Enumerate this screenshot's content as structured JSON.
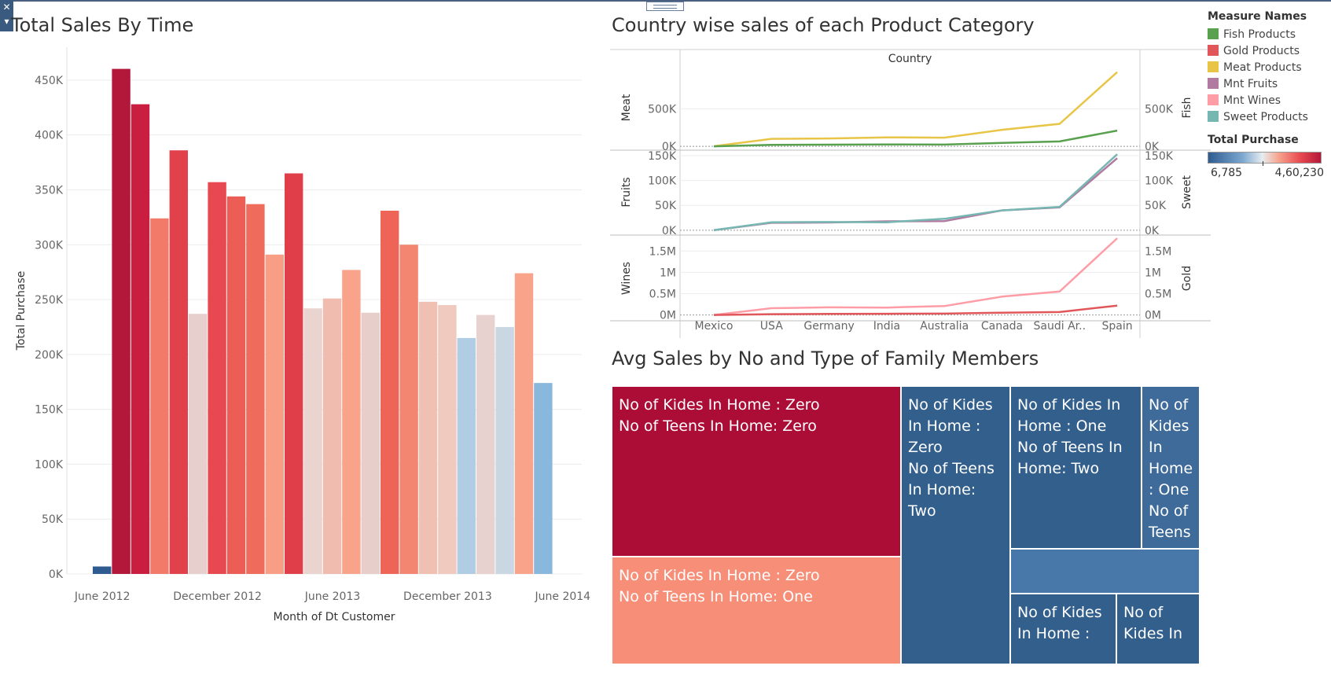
{
  "colors": {
    "title": "#333333",
    "axis_text": "#666666",
    "scale_low": "#2e5c91",
    "scale_mid": "#e6ecf0",
    "scale_high": "#b3183a"
  },
  "toolbar": {
    "corner_icon": "close-icon",
    "handle_icon": "drag-handle-icon"
  },
  "sales_by_time": {
    "title": "Total Sales By Time",
    "chart_data": {
      "type": "bar",
      "title": "Total Sales By Time",
      "xlabel": "Month of Dt Customer",
      "ylabel": "Total Purchase",
      "ylim": [
        0,
        480000
      ],
      "yticks": [
        "0K",
        "50K",
        "100K",
        "150K",
        "200K",
        "250K",
        "300K",
        "350K",
        "400K",
        "450K"
      ],
      "ytick_values": [
        0,
        50000,
        100000,
        150000,
        200000,
        250000,
        300000,
        350000,
        400000,
        450000
      ],
      "xticks": [
        "June 2012",
        "December 2012",
        "June 2013",
        "December 2013",
        "June 2014"
      ],
      "xtick_index": [
        1,
        7,
        13,
        19,
        25
      ],
      "categories": [
        "Jul 2012",
        "Aug 2012",
        "Sep 2012",
        "Oct 2012",
        "Nov 2012",
        "Dec 2012",
        "Jan 2013",
        "Feb 2013",
        "Mar 2013",
        "Apr 2013",
        "May 2013",
        "Jun 2013",
        "Jul 2013",
        "Aug 2013",
        "Sep 2013",
        "Oct 2013",
        "Nov 2013",
        "Dec 2013",
        "Jan 2014",
        "Feb 2014",
        "Mar 2014",
        "Apr 2014",
        "May 2014",
        "Jun 2014"
      ],
      "values": [
        6785,
        460230,
        428000,
        324000,
        386000,
        237000,
        357000,
        344000,
        337000,
        291000,
        365000,
        242000,
        251000,
        277000,
        238000,
        331000,
        300000,
        248000,
        245000,
        215000,
        236000,
        225000,
        274000,
        174000
      ],
      "colors": [
        "#2e5c91",
        "#b3183a",
        "#c91e3f",
        "#f27a68",
        "#e0414b",
        "#e6cfcd",
        "#e8484f",
        "#ec5d55",
        "#ef6b5c",
        "#f79e84",
        "#e03f4a",
        "#e9d4d0",
        "#f1bcb0",
        "#f8a38a",
        "#e7cecb",
        "#ee6457",
        "#f28670",
        "#f0c0b3",
        "#f0c9bf",
        "#b0cde4",
        "#e8d2cf",
        "#c8d7e2",
        "#f9a38a",
        "#8ab8dc"
      ],
      "grid": true
    }
  },
  "country_sales": {
    "title": "Country wise sales of each Product Category",
    "chart_data": {
      "type": "line",
      "title": "Country wise sales of each Product Category",
      "column_header": "Country",
      "x": [
        "Mexico",
        "USA",
        "Germany",
        "India",
        "Australia",
        "Canada",
        "Saudi Ar..",
        "Spain"
      ],
      "panels": [
        {
          "left_label": "Meat",
          "right_label": "Fish",
          "ylim": [
            -20000,
            1050000
          ],
          "yticks": [
            "0K",
            "500K"
          ],
          "ytick_values": [
            0,
            500000
          ],
          "series": [
            {
              "name": "Meat Products",
              "color": "#e8c547",
              "values": [
                1000,
                100000,
                105000,
                120000,
                115000,
                220000,
                300000,
                990000
              ]
            },
            {
              "name": "Fish Products",
              "color": "#59a14f",
              "values": [
                200,
                20000,
                22000,
                25000,
                23000,
                45000,
                65000,
                210000
              ]
            }
          ]
        },
        {
          "left_label": "Fruits",
          "right_label": "Sweet",
          "ylim": [
            -5000,
            158000
          ],
          "yticks": [
            "0K",
            "50K",
            "100K",
            "150K"
          ],
          "ytick_values": [
            0,
            50000,
            100000,
            150000
          ],
          "series": [
            {
              "name": "Mnt Fruits",
              "color": "#b07aa1",
              "values": [
                200,
                15000,
                15500,
                18000,
                18500,
                40000,
                46000,
                145000
              ]
            },
            {
              "name": "Sweet Products",
              "color": "#76b7b2",
              "values": [
                300,
                16000,
                16500,
                16000,
                23000,
                40000,
                47000,
                153000
              ]
            }
          ]
        },
        {
          "left_label": "Wines",
          "right_label": "Gold",
          "ylim": [
            -80000,
            1800000
          ],
          "yticks": [
            "0M",
            "0.5M",
            "1M",
            "1.5M"
          ],
          "ytick_values": [
            0,
            500000,
            1000000,
            1500000
          ],
          "series": [
            {
              "name": "Mnt Wines",
              "color": "#ff9da7",
              "values": [
                2000,
                160000,
                180000,
                175000,
                210000,
                430000,
                550000,
                1800000
              ]
            },
            {
              "name": "Gold Products",
              "color": "#e15759",
              "values": [
                500,
                20000,
                25000,
                28000,
                33000,
                55000,
                70000,
                220000
              ]
            }
          ]
        }
      ]
    }
  },
  "legend": {
    "measure_title": "Measure Names",
    "items": [
      {
        "label": "Fish Products",
        "color": "#59a14f"
      },
      {
        "label": "Gold Products",
        "color": "#e15759"
      },
      {
        "label": "Meat Products",
        "color": "#e8c547"
      },
      {
        "label": "Mnt Fruits",
        "color": "#b07aa1"
      },
      {
        "label": "Mnt Wines",
        "color": "#ff9da7"
      },
      {
        "label": "Sweet Products",
        "color": "#76b7b2"
      }
    ],
    "total_title": "Total Purchase",
    "min": "6,785",
    "max": "4,60,230"
  },
  "family": {
    "title": "Avg Sales by No and Type of Family Members",
    "cells": [
      {
        "label": "No of Kides In Home : Zero\n No of Teens In Home: Zero",
        "color": "#ab0d36"
      },
      {
        "label": "No of Kides In Home : Zero\n No of Teens In Home: One",
        "color": "#f78e77"
      },
      {
        "label": "No of Kides In Home : Zero\n No of Teens In Home: Two",
        "color": "#335f8d"
      },
      {
        "label": "No of Kides In Home : One\n No of Teens In Home: Two",
        "color": "#335f8d"
      },
      {
        "label": "No of Kides In Home : One\n No of Teens",
        "color": "#3e6b9a"
      },
      {
        "label": "",
        "color": "#4878a9"
      },
      {
        "label": "No of Kides In Home :",
        "color": "#335f8d"
      },
      {
        "label": "No of Kides In",
        "color": "#335f8d"
      }
    ]
  }
}
